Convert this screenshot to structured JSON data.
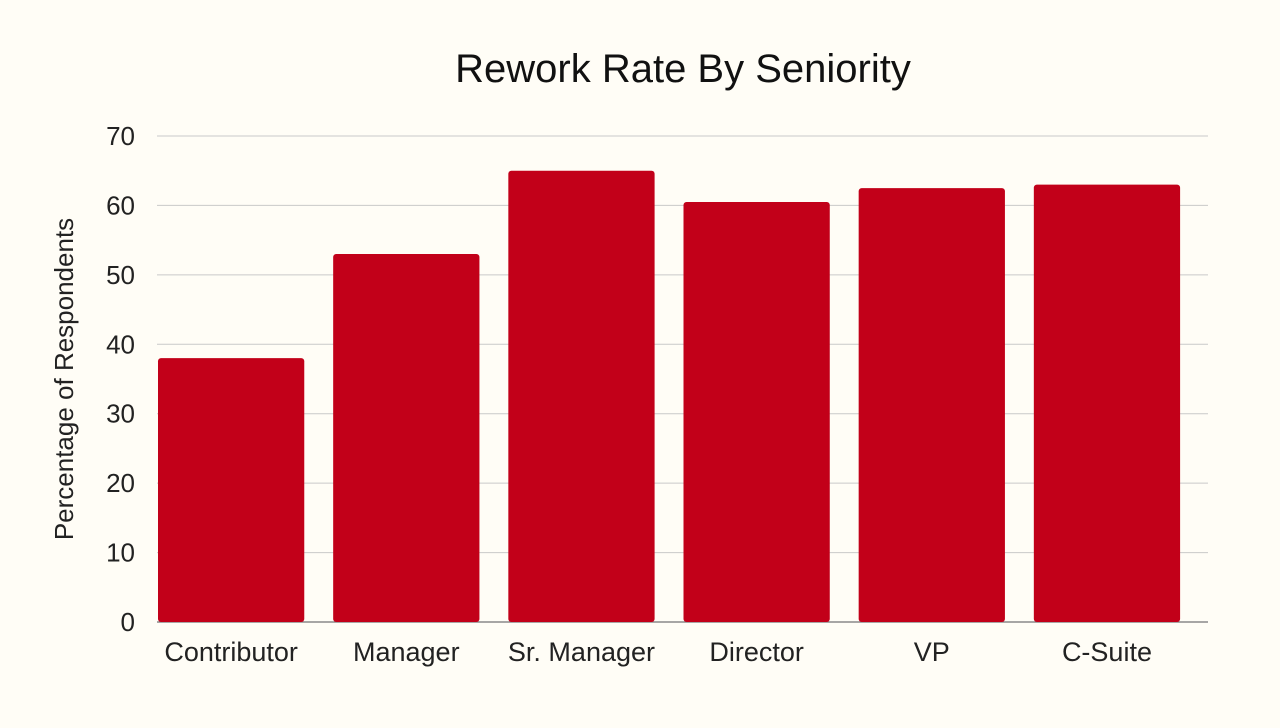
{
  "chart_data": {
    "type": "bar",
    "title": "Rework Rate By Seniority",
    "xlabel": "",
    "ylabel": "Percentage of Respondents",
    "categories": [
      "Contributor",
      "Manager",
      "Sr. Manager",
      "Director",
      "VP",
      "C-Suite"
    ],
    "values": [
      38,
      53,
      65,
      60.5,
      62.5,
      63
    ],
    "ylim": [
      0,
      70
    ],
    "yticks": [
      0,
      10,
      20,
      30,
      40,
      50,
      60,
      70
    ],
    "grid": true,
    "legend": "none",
    "bar_color": "#c20019",
    "background_color": "#fffdf6"
  }
}
